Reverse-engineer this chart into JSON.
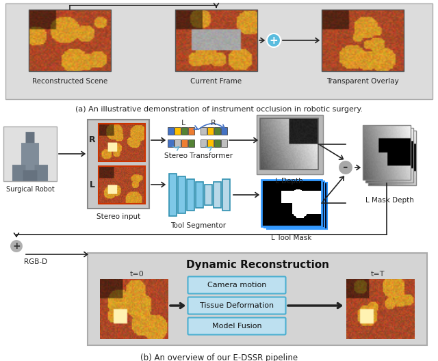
{
  "fig_width": 6.4,
  "fig_height": 5.28,
  "dpi": 100,
  "bg_color": "#ffffff",
  "panel_a": {
    "title": "(a) An illustrative demonstration of instrument occlusion in robotic surgery.",
    "labels": [
      "Reconstructed Scene",
      "Current Frame",
      "Transparent Overlay"
    ],
    "bg_color": "#e0e0e0"
  },
  "panel_b": {
    "title": "(b) An overview of our E-DSSR pipeline",
    "stereo_input_label": "Stereo input",
    "surgical_robot_label": "Surgical Robot",
    "stereo_transformer_label": "Stereo Transformer",
    "l_depth_label": "L Depth",
    "tool_segmentor_label": "Tool Segmentor",
    "l_tool_mask_label": "L Tool Mask",
    "l_mask_depth_label": "L Mask Depth",
    "rgb_d_label": "RGB-D",
    "dynamic_recon_title": "Dynamic Reconstruction",
    "dynamic_labels": [
      "Camera motion",
      "Tissue Deformation",
      "Model Fusion"
    ],
    "t0_label": "t=0",
    "tT_label": "t=T",
    "bg_color": "#f0f0f0",
    "dynamic_bg_color": "#d8d8d8"
  },
  "colors": {
    "panel_a_bg": "#dcdcdc",
    "panel_b_bg": "#f5f5f5",
    "dynamic_bg": "#d8d8d8",
    "stereo_box_bg": "#c8c8c8",
    "arrow_color": "#222222",
    "plus_circle": "#5abcde",
    "minus_circle": "#a8a8a8",
    "box_blue": "#4472c4",
    "box_yellow": "#ffc000",
    "box_green": "#548235",
    "box_orange": "#ed7d31",
    "box_gray_light": "#bfbfbf",
    "dynamic_box_fill": "#bde0f0",
    "dynamic_box_edge": "#4bafd0",
    "depth_bg": "#c8c8c8",
    "mask_bg": "#000000",
    "mask_edge": "#3399ff",
    "neural_blue": "#6ab0d8"
  }
}
